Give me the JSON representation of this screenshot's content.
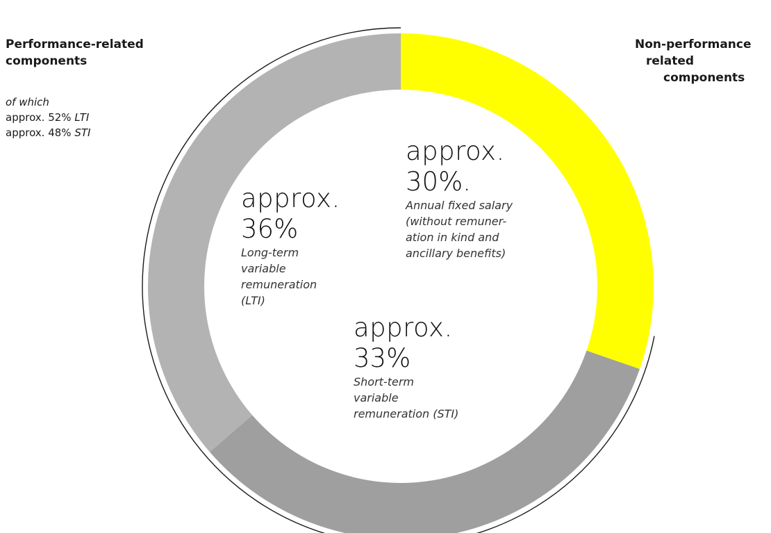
{
  "chart_data": {
    "type": "pie",
    "variant": "donut",
    "slices": [
      {
        "key": "fixed",
        "value": 30,
        "color": "#ffff00",
        "prefix": "approx.",
        "percent_text": "30%.",
        "description": [
          "Annual fixed salary",
          "(without remuner-",
          "ation in kind and",
          "ancillary benefits)"
        ]
      },
      {
        "key": "sti",
        "value": 33,
        "color": "#9f9f9f",
        "prefix": "approx.",
        "percent_text": "33%",
        "description": [
          "Short-term",
          "variable",
          "remuneration (STI)"
        ]
      },
      {
        "key": "lti",
        "value": 36,
        "color": "#b3b3b3",
        "prefix": "approx.",
        "percent_text": "36%",
        "description": [
          "Long-term",
          "variable",
          "remuneration",
          "(LTI)"
        ]
      }
    ],
    "groups": {
      "performance": {
        "heading": [
          "Performance-related",
          "components"
        ],
        "note_intro": "of which",
        "note_lines": [
          {
            "text": "approx. 52% ",
            "emph": "LTI"
          },
          {
            "text": "approx. 48% ",
            "emph": "STI"
          }
        ]
      },
      "non_performance": {
        "heading": [
          "Non-performance",
          "related",
          "components"
        ]
      }
    }
  }
}
